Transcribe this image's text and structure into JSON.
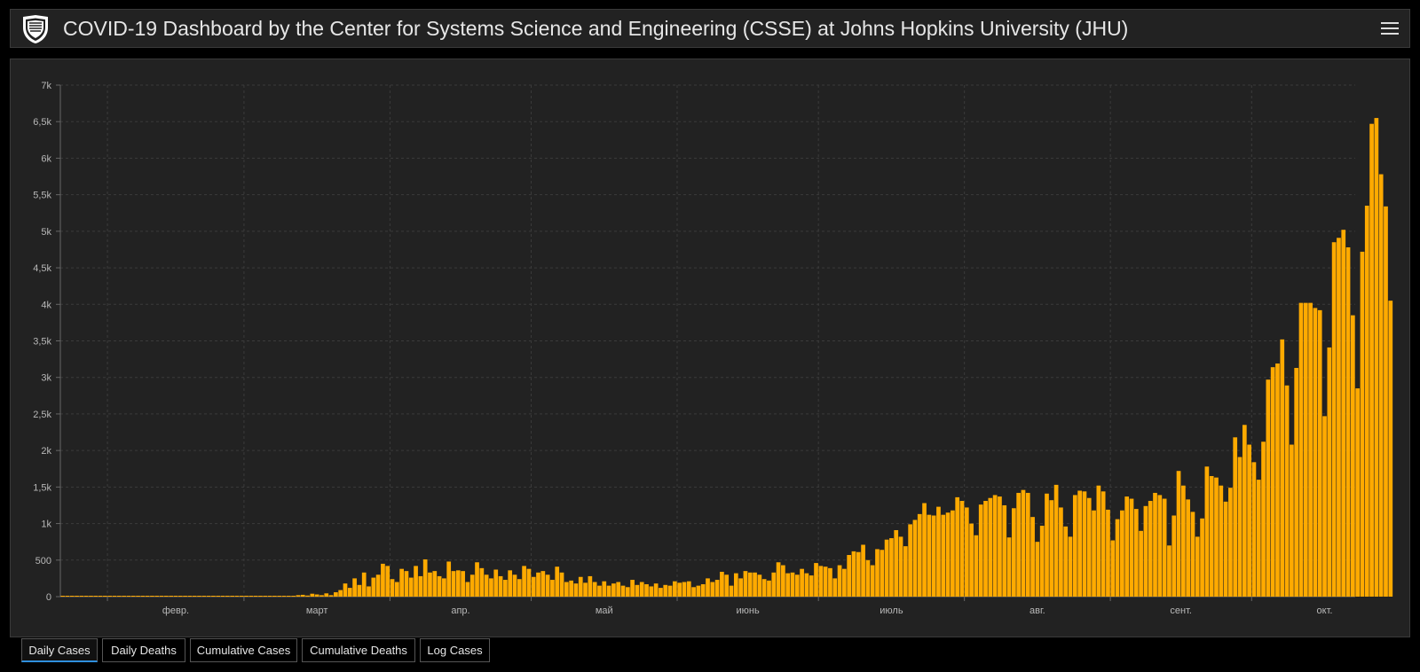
{
  "header": {
    "title": "COVID-19 Dashboard by the Center for Systems Science and Engineering (CSSE) at Johns Hopkins University (JHU)"
  },
  "colors": {
    "bar": "#ffaa00",
    "background": "#222222",
    "grid": "#3b3b3b"
  },
  "icons": {
    "logo": "university-shield-icon",
    "menu": "hamburger-menu-icon"
  },
  "tabs": [
    {
      "label": "Daily Cases",
      "active": true
    },
    {
      "label": "Daily Deaths",
      "active": false
    },
    {
      "label": "Cumulative Cases",
      "active": false
    },
    {
      "label": "Cumulative Deaths",
      "active": false
    },
    {
      "label": "Log Cases",
      "active": false
    }
  ],
  "chart_data": {
    "type": "bar",
    "title": "",
    "xlabel": "",
    "ylabel": "",
    "ylim": [
      0,
      7000
    ],
    "grid": true,
    "y_ticks": [
      {
        "value": 0,
        "label": "0"
      },
      {
        "value": 500,
        "label": "500"
      },
      {
        "value": 1000,
        "label": "1k"
      },
      {
        "value": 1500,
        "label": "1,5k"
      },
      {
        "value": 2000,
        "label": "2k"
      },
      {
        "value": 2500,
        "label": "2,5k"
      },
      {
        "value": 3000,
        "label": "3k"
      },
      {
        "value": 3500,
        "label": "3,5k"
      },
      {
        "value": 4000,
        "label": "4k"
      },
      {
        "value": 4500,
        "label": "4,5k"
      },
      {
        "value": 5000,
        "label": "5k"
      },
      {
        "value": 5500,
        "label": "5,5k"
      },
      {
        "value": 6000,
        "label": "6k"
      },
      {
        "value": 6500,
        "label": "6,5k"
      },
      {
        "value": 7000,
        "label": "7k"
      }
    ],
    "x_range": [
      "2020-01-22",
      "2020-10-22"
    ],
    "x_ticks": [
      {
        "date": "2020-02-01",
        "label": "февр."
      },
      {
        "date": "2020-03-01",
        "label": "март"
      },
      {
        "date": "2020-04-01",
        "label": "апр."
      },
      {
        "date": "2020-05-01",
        "label": "май"
      },
      {
        "date": "2020-06-01",
        "label": "июнь"
      },
      {
        "date": "2020-07-01",
        "label": "июль"
      },
      {
        "date": "2020-08-01",
        "label": "авг."
      },
      {
        "date": "2020-09-01",
        "label": "сент."
      },
      {
        "date": "2020-10-01",
        "label": "окт."
      }
    ],
    "values": [
      0,
      0,
      0,
      0,
      0,
      0,
      0,
      0,
      0,
      0,
      0,
      0,
      0,
      0,
      0,
      0,
      0,
      0,
      0,
      0,
      0,
      0,
      0,
      0,
      0,
      0,
      0,
      0,
      0,
      0,
      0,
      0,
      0,
      0,
      0,
      0,
      0,
      0,
      0,
      0,
      0,
      0,
      0,
      0,
      0,
      0,
      0,
      0,
      0,
      10,
      20,
      25,
      15,
      40,
      30,
      20,
      45,
      20,
      60,
      90,
      180,
      120,
      250,
      160,
      330,
      140,
      260,
      300,
      450,
      420,
      240,
      200,
      380,
      350,
      260,
      420,
      280,
      510,
      330,
      350,
      280,
      250,
      480,
      350,
      360,
      350,
      200,
      300,
      470,
      390,
      300,
      250,
      370,
      280,
      230,
      360,
      300,
      240,
      420,
      380,
      270,
      330,
      350,
      300,
      230,
      410,
      330,
      200,
      220,
      180,
      270,
      190,
      280,
      200,
      150,
      210,
      150,
      180,
      200,
      150,
      130,
      230,
      160,
      200,
      170,
      140,
      180,
      120,
      160,
      150,
      210,
      190,
      200,
      210,
      130,
      150,
      170,
      250,
      200,
      230,
      340,
      300,
      150,
      320,
      250,
      350,
      330,
      330,
      300,
      240,
      220,
      330,
      470,
      430,
      320,
      330,
      300,
      380,
      320,
      290,
      460,
      420,
      410,
      390,
      250,
      430,
      380,
      570,
      620,
      610,
      710,
      500,
      430,
      650,
      640,
      780,
      800,
      910,
      820,
      690,
      990,
      1050,
      1130,
      1280,
      1120,
      1110,
      1230,
      1120,
      1150,
      1180,
      1360,
      1310,
      1220,
      1000,
      840,
      1260,
      1310,
      1350,
      1390,
      1370,
      1250,
      810,
      1210,
      1420,
      1460,
      1420,
      1090,
      750,
      970,
      1410,
      1320,
      1530,
      1220,
      960,
      820,
      1390,
      1450,
      1440,
      1350,
      1180,
      1520,
      1440,
      1190,
      770,
      1060,
      1180,
      1370,
      1340,
      1200,
      900,
      1240,
      1310,
      1420,
      1390,
      1340,
      700,
      1110,
      1720,
      1520,
      1330,
      1160,
      820,
      1070,
      1780,
      1650,
      1630,
      1520,
      1300,
      1490,
      2180,
      1910,
      2350,
      2080,
      1840,
      1600,
      2120,
      2970,
      3140,
      3190,
      3520,
      2890,
      2080,
      3130,
      4020,
      4020,
      4020,
      3950,
      3920,
      2470,
      3410,
      4850,
      4910,
      5020,
      4780,
      3850,
      2850,
      4720,
      5350,
      6470,
      6550,
      5780,
      5340,
      4050
    ]
  }
}
